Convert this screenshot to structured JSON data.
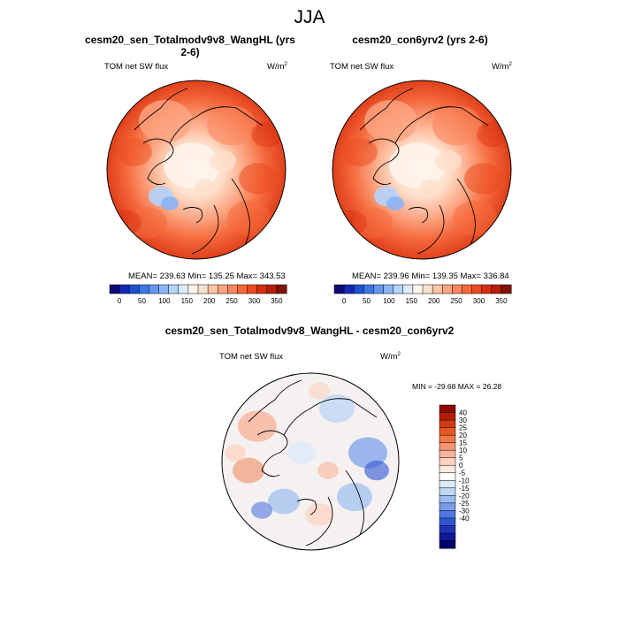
{
  "figure": {
    "title": "JJA"
  },
  "panels": [
    {
      "title": "cesm20_sen_Totalmodv9v8_WangHL (yrs 2-6)",
      "variable": "TOM net SW flux",
      "units_base": "W/m",
      "units_exp": "2",
      "stats": "MEAN= 239.63  Min= 135.25  Max= 343.53"
    },
    {
      "title": "cesm20_con6yrv2 (yrs 2-6)",
      "variable": "TOM net SW flux",
      "units_base": "W/m",
      "units_exp": "2",
      "stats": "MEAN= 239.96  Min= 139.35  Max= 336.84"
    },
    {
      "title": "cesm20_sen_Totalmodv9v8_WangHL - cesm20_con6yrv2",
      "variable": "TOM net SW flux",
      "units_base": "W/m",
      "units_exp": "2",
      "stats": "MIN = -29.68 MAX =  26.28"
    }
  ],
  "chart_data": [
    {
      "type": "heatmap",
      "projection": "north-polar-stereographic",
      "title": "cesm20_sen_Totalmodv9v8_WangHL (yrs 2-6)",
      "variable": "TOM net SW flux",
      "units": "W/m^2",
      "mean": 239.63,
      "min": 135.25,
      "max": 343.53,
      "colorbar": {
        "orientation": "horizontal",
        "tick_labels": [
          "0",
          "50",
          "100",
          "150",
          "200",
          "250",
          "300",
          "350"
        ],
        "colors": [
          "#0a0a78",
          "#1428b4",
          "#1e50d2",
          "#3c78e6",
          "#6496f0",
          "#8cb4f5",
          "#b4d2fa",
          "#dcebfc",
          "#fff5eb",
          "#fee0cc",
          "#fcc3a5",
          "#fca582",
          "#fa875f",
          "#f5693c",
          "#eb4b1e",
          "#d72d0f",
          "#b41e0a",
          "#821405"
        ]
      }
    },
    {
      "type": "heatmap",
      "projection": "north-polar-stereographic",
      "title": "cesm20_con6yrv2 (yrs 2-6)",
      "variable": "TOM net SW flux",
      "units": "W/m^2",
      "mean": 239.96,
      "min": 139.35,
      "max": 336.84,
      "colorbar": {
        "orientation": "horizontal",
        "tick_labels": [
          "0",
          "50",
          "100",
          "150",
          "200",
          "250",
          "300",
          "350"
        ],
        "colors": [
          "#0a0a78",
          "#1428b4",
          "#1e50d2",
          "#3c78e6",
          "#6496f0",
          "#8cb4f5",
          "#b4d2fa",
          "#dcebfc",
          "#fff5eb",
          "#fee0cc",
          "#fcc3a5",
          "#fca582",
          "#fa875f",
          "#f5693c",
          "#eb4b1e",
          "#d72d0f",
          "#b41e0a",
          "#821405"
        ]
      }
    },
    {
      "type": "heatmap",
      "projection": "north-polar-stereographic",
      "title": "cesm20_sen_Totalmodv9v8_WangHL - cesm20_con6yrv2",
      "variable": "TOM net SW flux",
      "units": "W/m^2",
      "min": -29.68,
      "max": 26.28,
      "colorbar": {
        "orientation": "vertical",
        "tick_labels": [
          "40",
          "30",
          "25",
          "20",
          "15",
          "10",
          "5",
          "0",
          "-5",
          "-10",
          "-15",
          "-20",
          "-25",
          "-30",
          "-40"
        ],
        "colors": [
          "#8c0a00",
          "#b41e00",
          "#d23c0f",
          "#e65a1e",
          "#f07846",
          "#f59673",
          "#f9b59c",
          "#fcd2bf",
          "#fdebdf",
          "#ffffff",
          "#dcebfa",
          "#bed7f5",
          "#9bbef0",
          "#789ceb",
          "#5078e1",
          "#2d55d2",
          "#1e32b4",
          "#0f1996",
          "#00006e"
        ]
      }
    }
  ]
}
